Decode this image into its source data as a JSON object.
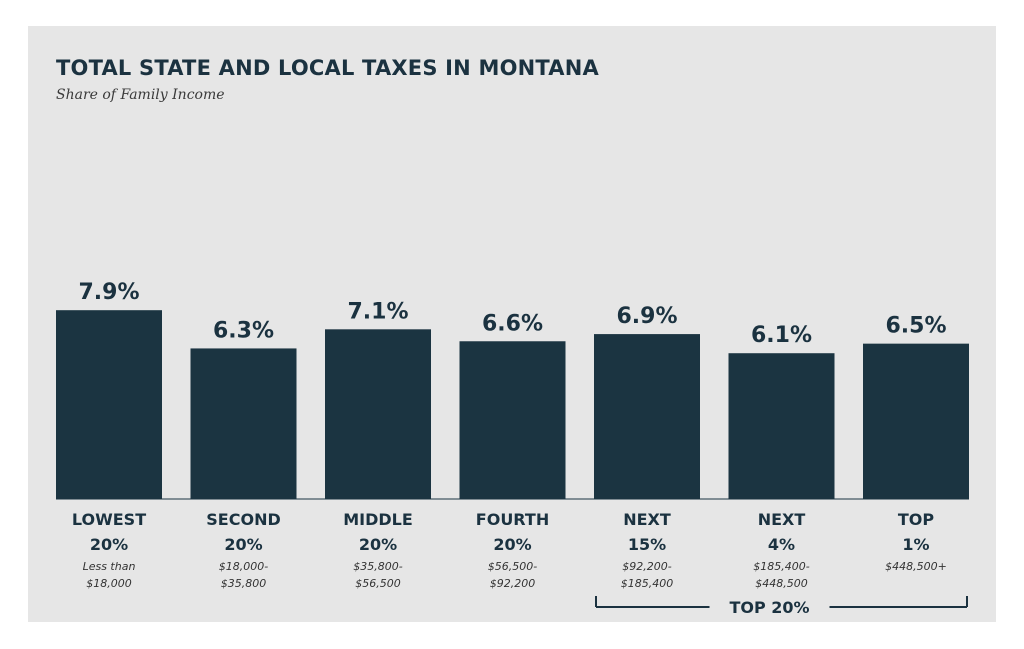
{
  "chart_data": {
    "type": "bar",
    "title": "TOTAL STATE AND LOCAL TAXES IN MONTANA",
    "subtitle": "Share of Family Income",
    "categories": [
      {
        "line1": "LOWEST",
        "line2": "20%",
        "range1": "Less than",
        "range2": "$18,000"
      },
      {
        "line1": "SECOND",
        "line2": "20%",
        "range1": "$18,000-",
        "range2": "$35,800"
      },
      {
        "line1": "MIDDLE",
        "line2": "20%",
        "range1": "$35,800-",
        "range2": "$56,500"
      },
      {
        "line1": "FOURTH",
        "line2": "20%",
        "range1": "$56,500-",
        "range2": "$92,200"
      },
      {
        "line1": "NEXT",
        "line2": "15%",
        "range1": "$92,200-",
        "range2": "$185,400"
      },
      {
        "line1": "NEXT",
        "line2": "4%",
        "range1": "$185,400-",
        "range2": "$448,500"
      },
      {
        "line1": "TOP",
        "line2": "1%",
        "range1": "$448,500+",
        "range2": ""
      }
    ],
    "values": [
      7.9,
      6.3,
      7.1,
      6.6,
      6.9,
      6.1,
      6.5
    ],
    "value_labels": [
      "7.9%",
      "6.3%",
      "7.1%",
      "6.6%",
      "6.9%",
      "6.1%",
      "6.5%"
    ],
    "group_bracket": {
      "label": "TOP 20%",
      "first_index": 4,
      "last_index": 6
    },
    "ylim": [
      0,
      9.5
    ],
    "grid": false,
    "bar_color": "#1b3441",
    "text_color": "#1b3240",
    "range_color": "#333333"
  }
}
